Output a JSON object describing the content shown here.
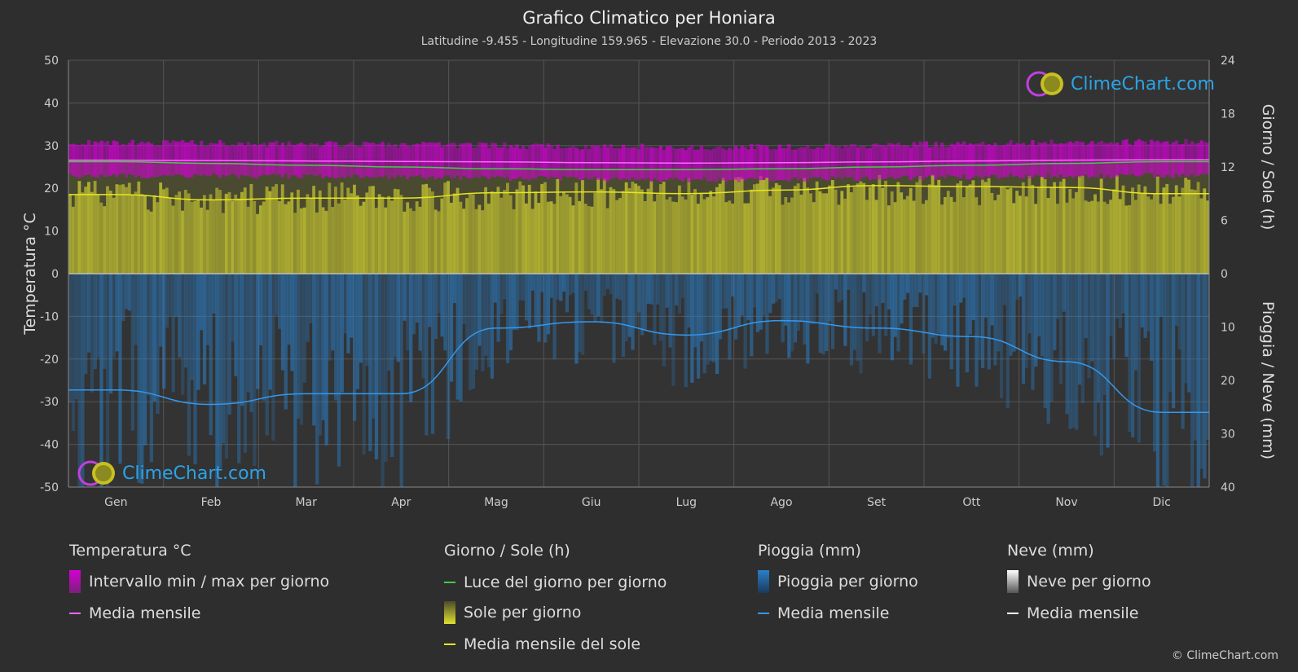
{
  "header": {
    "title": "Grafico Climatico per Honiara",
    "subtitle": "Latitudine -9.455 - Longitudine 159.965 - Elevazione 30.0 - Periodo 2013 - 2023"
  },
  "logo": {
    "text": "ClimeChart.com"
  },
  "copyright": "© ClimeChart.com",
  "legend": {
    "temperature": {
      "title": "Temperatura °C",
      "range_label": "Intervallo min / max per giorno",
      "mean_label": "Media mensile"
    },
    "sun": {
      "title": "Giorno / Sole (h)",
      "daylight_label": "Luce del giorno per giorno",
      "sun_label": "Sole per giorno",
      "mean_label": "Media mensile del sole"
    },
    "rain": {
      "title": "Pioggia (mm)",
      "rain_label": "Pioggia per giorno",
      "mean_label": "Media mensile"
    },
    "snow": {
      "title": "Neve (mm)",
      "snow_label": "Neve per giorno",
      "mean_label": "Media mensile"
    }
  },
  "colors": {
    "temp_range": "#d400d4",
    "temp_mean": "#ff66ff",
    "daylight": "#44cc44",
    "sunshine": "#c8c832",
    "sun_mean": "#e6e620",
    "rain": "#2a7fc8",
    "rain_mean": "#3399ee",
    "snow_mean": "#ffffff"
  },
  "chart_data": {
    "type": "line",
    "months": [
      "Gen",
      "Feb",
      "Mar",
      "Apr",
      "Mag",
      "Giu",
      "Lug",
      "Ago",
      "Set",
      "Ott",
      "Nov",
      "Dic"
    ],
    "y_left": {
      "label": "Temperatura °C",
      "ticks": [
        50,
        40,
        30,
        20,
        10,
        0,
        -10,
        -20,
        -30,
        -40,
        -50
      ],
      "range": [
        -50,
        50
      ]
    },
    "y_right_top": {
      "label": "Giorno / Sole (h)",
      "ticks": [
        24,
        18,
        12,
        6,
        0
      ],
      "range": [
        0,
        24
      ]
    },
    "y_right_bottom": {
      "label": "Pioggia / Neve (mm)",
      "ticks": [
        0,
        10,
        20,
        30,
        40
      ],
      "range": [
        0,
        40
      ]
    },
    "series": [
      {
        "name": "Intervallo min / max per giorno",
        "unit": "°C",
        "min": [
          23.5,
          23.5,
          23.4,
          23.2,
          23.0,
          22.8,
          22.6,
          22.7,
          23.0,
          23.3,
          23.5,
          23.6
        ],
        "max": [
          30.0,
          29.8,
          29.6,
          29.5,
          29.3,
          29.0,
          28.9,
          29.0,
          29.4,
          29.7,
          30.0,
          30.1
        ]
      },
      {
        "name": "Media mensile",
        "unit": "°C",
        "values": [
          26.6,
          26.5,
          26.4,
          26.3,
          26.2,
          26.0,
          25.9,
          26.0,
          26.2,
          26.4,
          26.6,
          26.7
        ]
      },
      {
        "name": "Luce del giorno per giorno",
        "unit": "h",
        "values": [
          12.6,
          12.4,
          12.2,
          12.0,
          11.8,
          11.7,
          11.7,
          11.8,
          12.0,
          12.2,
          12.4,
          12.6
        ]
      },
      {
        "name": "Sole per giorno",
        "unit": "h",
        "values": [
          10.6,
          10.0,
          10.2,
          10.4,
          10.6,
          10.8,
          10.9,
          11.0,
          11.1,
          11.2,
          11.3,
          11.0
        ]
      },
      {
        "name": "Media mensile del sole",
        "unit": "h",
        "values": [
          8.9,
          8.3,
          8.5,
          8.5,
          9.1,
          9.2,
          9.0,
          9.4,
          9.9,
          9.8,
          9.7,
          9.0
        ]
      },
      {
        "name": "Media mensile (pioggia)",
        "unit": "mm",
        "values": [
          21.8,
          24.5,
          22.5,
          22.5,
          10.2,
          9.0,
          11.5,
          8.8,
          10.2,
          11.8,
          16.5,
          26.0
        ]
      },
      {
        "name": "Media mensile (neve)",
        "unit": "mm",
        "values": [
          0,
          0,
          0,
          0,
          0,
          0,
          0,
          0,
          0,
          0,
          0,
          0
        ]
      }
    ]
  }
}
